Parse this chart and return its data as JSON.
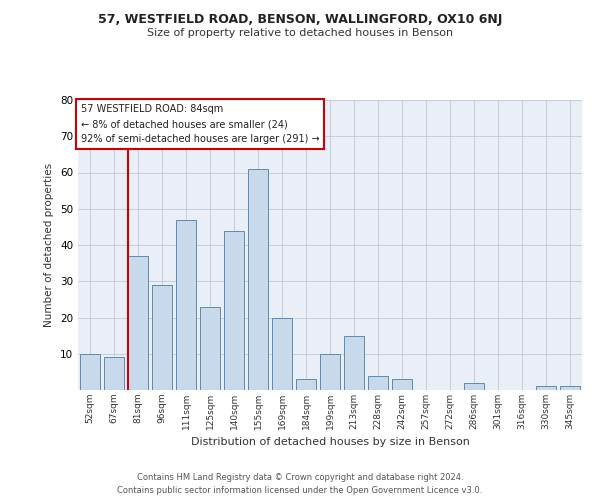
{
  "title1": "57, WESTFIELD ROAD, BENSON, WALLINGFORD, OX10 6NJ",
  "title2": "Size of property relative to detached houses in Benson",
  "xlabel": "Distribution of detached houses by size in Benson",
  "ylabel": "Number of detached properties",
  "categories": [
    "52sqm",
    "67sqm",
    "81sqm",
    "96sqm",
    "111sqm",
    "125sqm",
    "140sqm",
    "155sqm",
    "169sqm",
    "184sqm",
    "199sqm",
    "213sqm",
    "228sqm",
    "242sqm",
    "257sqm",
    "272sqm",
    "286sqm",
    "301sqm",
    "316sqm",
    "330sqm",
    "345sqm"
  ],
  "values": [
    10,
    9,
    37,
    29,
    47,
    23,
    44,
    61,
    20,
    3,
    10,
    15,
    4,
    3,
    0,
    0,
    2,
    0,
    0,
    1,
    1
  ],
  "bar_color": "#c9d9ec",
  "bar_edge_color": "#5b8ab5",
  "highlight_bar_index": 2,
  "highlight_line_color": "#cc0000",
  "ylim": [
    0,
    80
  ],
  "yticks": [
    0,
    10,
    20,
    30,
    40,
    50,
    60,
    70,
    80
  ],
  "annotation_line1": "57 WESTFIELD ROAD: 84sqm",
  "annotation_line2": "← 8% of detached houses are smaller (24)",
  "annotation_line3": "92% of semi-detached houses are larger (291) →",
  "annotation_box_color": "#ffffff",
  "annotation_box_edge_color": "#cc0000",
  "footer1": "Contains HM Land Registry data © Crown copyright and database right 2024.",
  "footer2": "Contains public sector information licensed under the Open Government Licence v3.0.",
  "bg_color": "#ffffff",
  "axes_bg_color": "#eaeff7",
  "grid_color": "#c0c8d8"
}
